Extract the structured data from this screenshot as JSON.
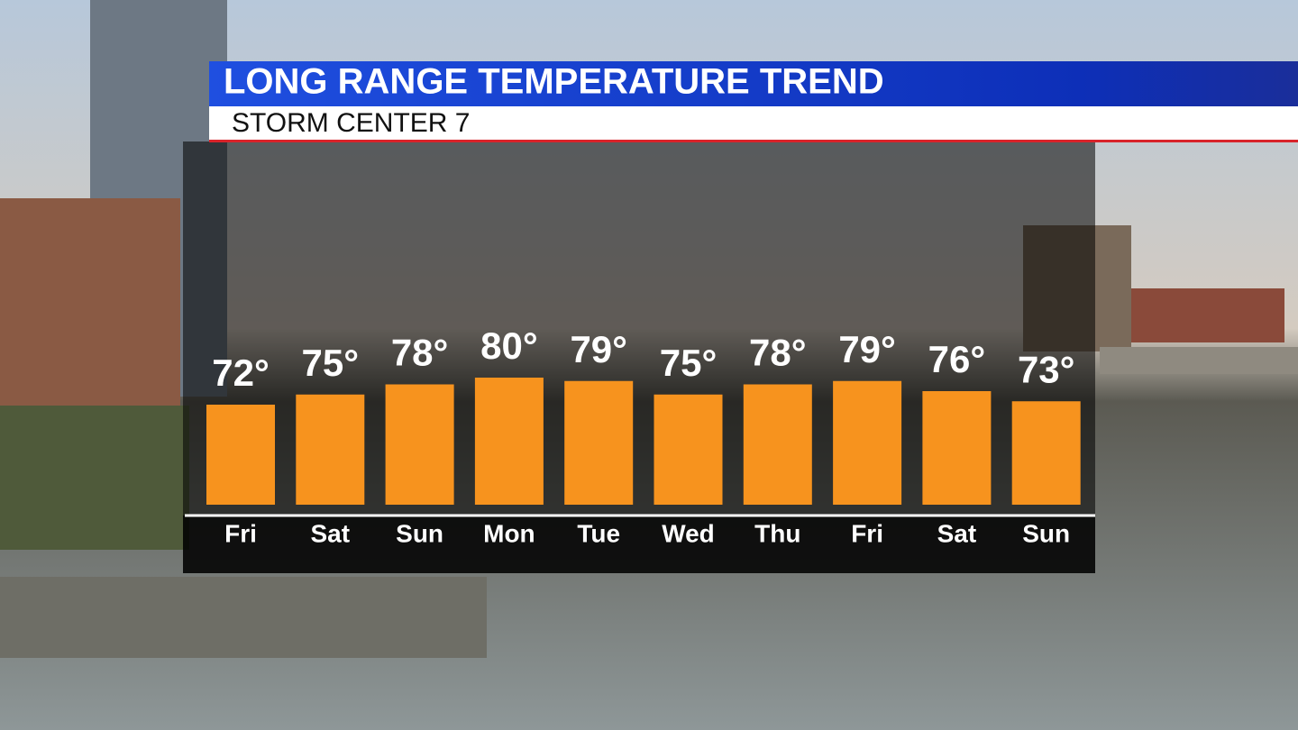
{
  "chart_data": {
    "type": "bar",
    "title": "LONG RANGE TEMPERATURE TREND",
    "subtitle": "STORM CENTER 7",
    "categories": [
      "Fri",
      "Sat",
      "Sun",
      "Mon",
      "Tue",
      "Wed",
      "Thu",
      "Fri",
      "Sat",
      "Sun"
    ],
    "values": [
      72,
      75,
      78,
      80,
      79,
      75,
      78,
      79,
      76,
      73
    ],
    "value_labels": [
      "72°",
      "75°",
      "78°",
      "80°",
      "79°",
      "75°",
      "78°",
      "79°",
      "76°",
      "73°"
    ],
    "color": "#f7931e"
  }
}
